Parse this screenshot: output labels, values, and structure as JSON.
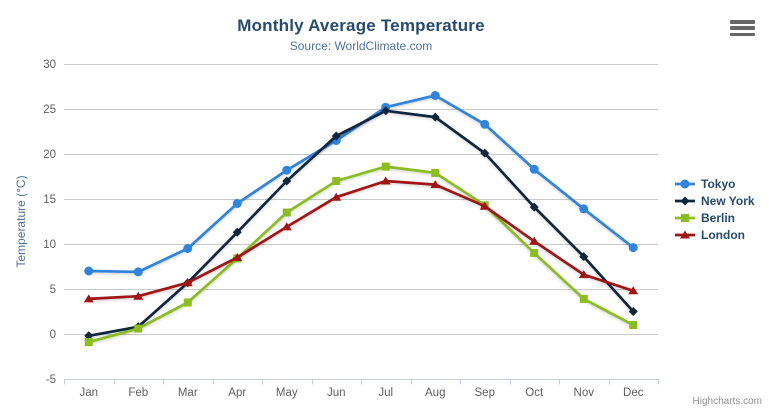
{
  "chart_data": {
    "type": "line",
    "title": "Monthly Average Temperature",
    "subtitle": "Source: WorldClimate.com",
    "xlabel": "",
    "ylabel": "Temperature (°C)",
    "categories": [
      "Jan",
      "Feb",
      "Mar",
      "Apr",
      "May",
      "Jun",
      "Jul",
      "Aug",
      "Sep",
      "Oct",
      "Nov",
      "Dec"
    ],
    "yticks": [
      -5,
      0,
      5,
      10,
      15,
      20,
      25,
      30
    ],
    "ylim": [
      -5,
      30
    ],
    "grid": true,
    "legend_position": "right",
    "series": [
      {
        "name": "Tokyo",
        "color": "#3183dc",
        "marker": "circle",
        "values": [
          7.0,
          6.9,
          9.5,
          14.5,
          18.2,
          21.5,
          25.2,
          26.5,
          23.3,
          18.3,
          13.9,
          9.6
        ]
      },
      {
        "name": "New York",
        "color": "#10263d",
        "marker": "diamond",
        "values": [
          -0.2,
          0.8,
          5.7,
          11.3,
          17.0,
          22.0,
          24.8,
          24.1,
          20.1,
          14.1,
          8.6,
          2.5
        ]
      },
      {
        "name": "Berlin",
        "color": "#8bbc21",
        "marker": "square",
        "values": [
          -0.9,
          0.6,
          3.5,
          8.4,
          13.5,
          17.0,
          18.6,
          17.9,
          14.3,
          9.0,
          3.9,
          1.0
        ]
      },
      {
        "name": "London",
        "color": "#a01414",
        "marker": "triangle",
        "values": [
          3.9,
          4.2,
          5.7,
          8.5,
          11.9,
          15.2,
          17.0,
          16.6,
          14.2,
          10.3,
          6.6,
          4.8
        ]
      }
    ],
    "grid_color": "#c9c9c9",
    "axis_line_color": "#c0d0e0"
  },
  "credits": "Highcharts.com",
  "icons": {
    "export_menu": "hamburger-icon"
  }
}
